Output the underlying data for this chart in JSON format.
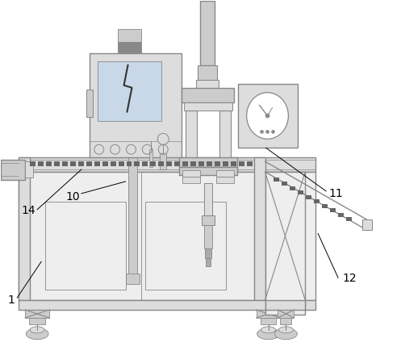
{
  "bg_color": "#ffffff",
  "lc": "#888888",
  "lc_dark": "#555555",
  "lc_med": "#999999",
  "fill_light": "#eeeeee",
  "fill_med": "#dddddd",
  "fill_dark": "#cccccc",
  "fill_darker": "#aaaaaa",
  "label_fontsize": 10,
  "label_color": "black"
}
